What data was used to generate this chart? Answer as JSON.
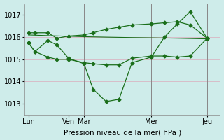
{
  "xlabel": "Pression niveau de la mer( hPa )",
  "ylim": [
    1012.5,
    1017.5
  ],
  "yticks": [
    1013,
    1014,
    1015,
    1016,
    1017
  ],
  "bg_color": "#ceecea",
  "grid_color": "#dbaabb",
  "line_color": "#1a6e1a",
  "xtick_labels": [
    "Lun",
    "Ven",
    "Mar",
    "Mer",
    "Jeu"
  ],
  "xtick_positions": [
    0.0,
    3.1,
    4.3,
    9.5,
    13.8
  ],
  "vline_positions": [
    0.0,
    3.1,
    4.3,
    9.5,
    13.8
  ],
  "num_points": 15,
  "line1_x": [
    0,
    0.5,
    1.5,
    2.2,
    3.1,
    4.3,
    5.0,
    6.0,
    7.0,
    8.0,
    9.5,
    10.5,
    11.5,
    12.5,
    13.8
  ],
  "line1_y": [
    1015.75,
    1015.35,
    1015.85,
    1015.65,
    1015.05,
    1014.8,
    1013.65,
    1013.1,
    1013.2,
    1014.85,
    1015.1,
    1016.0,
    1016.6,
    1017.15,
    1015.95
  ],
  "line2_x": [
    0,
    0.5,
    1.5,
    2.2,
    3.1,
    4.3,
    5.0,
    6.0,
    7.0,
    8.0,
    9.5,
    10.5,
    11.5,
    12.5,
    13.8
  ],
  "line2_y": [
    1016.2,
    1016.2,
    1016.2,
    1015.95,
    1016.05,
    1016.1,
    1016.2,
    1016.35,
    1016.45,
    1016.55,
    1016.6,
    1016.65,
    1016.7,
    1016.55,
    1015.95
  ],
  "line3_x": [
    0,
    1.5,
    3.1,
    4.3,
    6.0,
    8.0,
    9.5,
    11.5,
    13.8
  ],
  "line3_y": [
    1016.1,
    1016.07,
    1016.04,
    1016.02,
    1016.0,
    1015.98,
    1015.97,
    1015.95,
    1015.92
  ],
  "line4_x": [
    0,
    0.5,
    1.5,
    2.2,
    3.1,
    4.3,
    5.0,
    6.0,
    7.0,
    8.0,
    9.5,
    10.5,
    11.5,
    12.5,
    13.8
  ],
  "line4_y": [
    1015.75,
    1015.35,
    1015.1,
    1015.0,
    1015.0,
    1014.85,
    1014.8,
    1014.75,
    1014.75,
    1015.05,
    1015.15,
    1015.15,
    1015.1,
    1015.15,
    1015.95
  ]
}
